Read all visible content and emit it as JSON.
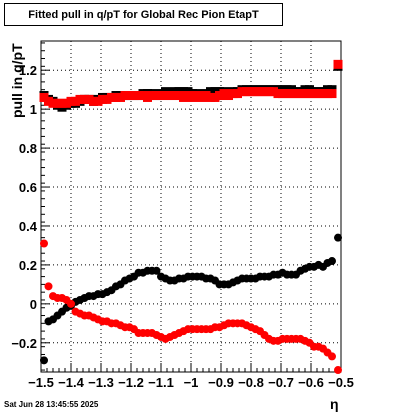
{
  "title": "Fitted pull in q/pT for Global Rec Pion EtapT",
  "footer": "Sat Jun 28 13:45:55 2025",
  "chart_data": {
    "type": "scatter",
    "title": "Fitted pull in q/pT for Global Rec Pion EtapT",
    "xlabel": "η",
    "ylabel": "pull in q/pT",
    "xlim": [
      -1.5,
      -0.5
    ],
    "ylim": [
      -0.35,
      1.35
    ],
    "grid": true,
    "x_ticks": [
      -1.5,
      -1.4,
      -1.3,
      -1.2,
      -1.1,
      -1.0,
      -0.9,
      -0.8,
      -0.7,
      -0.6,
      -0.5
    ],
    "x_tick_labels": [
      "−1.5",
      "−1.4",
      "−1.3",
      "−1.2",
      "−1.1",
      "−1",
      "−0.9",
      "−0.8",
      "−0.7",
      "−0.6",
      "−0.5"
    ],
    "y_ticks": [
      -0.2,
      0,
      0.2,
      0.4,
      0.6,
      0.8,
      1.0,
      1.2
    ],
    "y_tick_labels": [
      "−0.2",
      "0",
      "0.2",
      "0.4",
      "0.6",
      "0.8",
      "1",
      "1.2"
    ],
    "series": [
      {
        "color": "#000000",
        "markers": "circle",
        "points": [
          [
            -1.49,
            -0.29
          ],
          [
            -1.475,
            -0.09
          ],
          [
            -1.46,
            -0.08
          ],
          [
            -1.445,
            -0.06
          ],
          [
            -1.43,
            -0.04
          ],
          [
            -1.415,
            -0.02
          ],
          [
            -1.4,
            -0.01
          ],
          [
            -1.385,
            0.01
          ],
          [
            -1.37,
            0.02
          ],
          [
            -1.355,
            0.03
          ],
          [
            -1.34,
            0.04
          ],
          [
            -1.325,
            0.04
          ],
          [
            -1.31,
            0.05
          ],
          [
            -1.295,
            0.05
          ],
          [
            -1.28,
            0.06
          ],
          [
            -1.265,
            0.07
          ],
          [
            -1.25,
            0.09
          ],
          [
            -1.235,
            0.1
          ],
          [
            -1.22,
            0.12
          ],
          [
            -1.205,
            0.13
          ],
          [
            -1.19,
            0.14
          ],
          [
            -1.175,
            0.16
          ],
          [
            -1.16,
            0.16
          ],
          [
            -1.145,
            0.17
          ],
          [
            -1.13,
            0.17
          ],
          [
            -1.115,
            0.17
          ],
          [
            -1.1,
            0.14
          ],
          [
            -1.085,
            0.13
          ],
          [
            -1.07,
            0.12
          ],
          [
            -1.055,
            0.12
          ],
          [
            -1.04,
            0.13
          ],
          [
            -1.025,
            0.13
          ],
          [
            -1.01,
            0.14
          ],
          [
            -0.995,
            0.14
          ],
          [
            -0.98,
            0.14
          ],
          [
            -0.965,
            0.14
          ],
          [
            -0.95,
            0.13
          ],
          [
            -0.935,
            0.13
          ],
          [
            -0.92,
            0.12
          ],
          [
            -0.905,
            0.1
          ],
          [
            -0.89,
            0.1
          ],
          [
            -0.875,
            0.1
          ],
          [
            -0.86,
            0.11
          ],
          [
            -0.845,
            0.12
          ],
          [
            -0.83,
            0.13
          ],
          [
            -0.815,
            0.13
          ],
          [
            -0.8,
            0.13
          ],
          [
            -0.785,
            0.13
          ],
          [
            -0.77,
            0.14
          ],
          [
            -0.755,
            0.14
          ],
          [
            -0.74,
            0.14
          ],
          [
            -0.725,
            0.15
          ],
          [
            -0.71,
            0.15
          ],
          [
            -0.695,
            0.16
          ],
          [
            -0.68,
            0.15
          ],
          [
            -0.665,
            0.15
          ],
          [
            -0.65,
            0.15
          ],
          [
            -0.635,
            0.17
          ],
          [
            -0.62,
            0.18
          ],
          [
            -0.605,
            0.19
          ],
          [
            -0.59,
            0.19
          ],
          [
            -0.575,
            0.2
          ],
          [
            -0.56,
            0.19
          ],
          [
            -0.545,
            0.21
          ],
          [
            -0.53,
            0.22
          ],
          [
            -0.51,
            0.34
          ]
        ]
      },
      {
        "color": "#ff0000",
        "markers": "circle",
        "points": [
          [
            -1.49,
            0.31
          ],
          [
            -1.475,
            0.09
          ],
          [
            -1.46,
            0.04
          ],
          [
            -1.445,
            0.03
          ],
          [
            -1.43,
            0.03
          ],
          [
            -1.415,
            0.02
          ],
          [
            -1.4,
            0.0
          ],
          [
            -1.385,
            -0.04
          ],
          [
            -1.37,
            -0.05
          ],
          [
            -1.355,
            -0.06
          ],
          [
            -1.34,
            -0.06
          ],
          [
            -1.325,
            -0.07
          ],
          [
            -1.31,
            -0.08
          ],
          [
            -1.295,
            -0.09
          ],
          [
            -1.28,
            -0.09
          ],
          [
            -1.265,
            -0.1
          ],
          [
            -1.25,
            -0.1
          ],
          [
            -1.235,
            -0.11
          ],
          [
            -1.22,
            -0.12
          ],
          [
            -1.205,
            -0.12
          ],
          [
            -1.19,
            -0.13
          ],
          [
            -1.175,
            -0.15
          ],
          [
            -1.16,
            -0.15
          ],
          [
            -1.145,
            -0.15
          ],
          [
            -1.13,
            -0.15
          ],
          [
            -1.115,
            -0.16
          ],
          [
            -1.1,
            -0.17
          ],
          [
            -1.085,
            -0.18
          ],
          [
            -1.07,
            -0.17
          ],
          [
            -1.055,
            -0.16
          ],
          [
            -1.04,
            -0.15
          ],
          [
            -1.025,
            -0.14
          ],
          [
            -1.01,
            -0.13
          ],
          [
            -0.995,
            -0.13
          ],
          [
            -0.98,
            -0.13
          ],
          [
            -0.965,
            -0.13
          ],
          [
            -0.95,
            -0.13
          ],
          [
            -0.935,
            -0.13
          ],
          [
            -0.92,
            -0.12
          ],
          [
            -0.905,
            -0.12
          ],
          [
            -0.89,
            -0.11
          ],
          [
            -0.875,
            -0.1
          ],
          [
            -0.86,
            -0.1
          ],
          [
            -0.845,
            -0.1
          ],
          [
            -0.83,
            -0.1
          ],
          [
            -0.815,
            -0.11
          ],
          [
            -0.8,
            -0.12
          ],
          [
            -0.785,
            -0.13
          ],
          [
            -0.77,
            -0.14
          ],
          [
            -0.755,
            -0.16
          ],
          [
            -0.74,
            -0.18
          ],
          [
            -0.725,
            -0.19
          ],
          [
            -0.71,
            -0.19
          ],
          [
            -0.695,
            -0.18
          ],
          [
            -0.68,
            -0.18
          ],
          [
            -0.665,
            -0.18
          ],
          [
            -0.65,
            -0.18
          ],
          [
            -0.635,
            -0.18
          ],
          [
            -0.62,
            -0.19
          ],
          [
            -0.605,
            -0.2
          ],
          [
            -0.59,
            -0.22
          ],
          [
            -0.575,
            -0.22
          ],
          [
            -0.56,
            -0.23
          ],
          [
            -0.545,
            -0.25
          ],
          [
            -0.53,
            -0.27
          ],
          [
            -0.51,
            -0.34
          ]
        ]
      },
      {
        "color": "#000000",
        "markers": "square",
        "points": [
          [
            -1.49,
            1.07
          ],
          [
            -1.475,
            1.05
          ],
          [
            -1.46,
            1.04
          ],
          [
            -1.445,
            1.02
          ],
          [
            -1.43,
            1.01
          ],
          [
            -1.415,
            1.02
          ],
          [
            -1.4,
            1.03
          ],
          [
            -1.385,
            1.03
          ],
          [
            -1.37,
            1.04
          ],
          [
            -1.355,
            1.05
          ],
          [
            -1.34,
            1.05
          ],
          [
            -1.325,
            1.04
          ],
          [
            -1.31,
            1.05
          ],
          [
            -1.295,
            1.06
          ],
          [
            -1.28,
            1.06
          ],
          [
            -1.265,
            1.06
          ],
          [
            -1.25,
            1.07
          ],
          [
            -1.235,
            1.07
          ],
          [
            -1.22,
            1.07
          ],
          [
            -1.205,
            1.07
          ],
          [
            -1.19,
            1.07
          ],
          [
            -1.175,
            1.07
          ],
          [
            -1.16,
            1.08
          ],
          [
            -1.145,
            1.08
          ],
          [
            -1.13,
            1.08
          ],
          [
            -1.115,
            1.07
          ],
          [
            -1.1,
            1.08
          ],
          [
            -1.085,
            1.09
          ],
          [
            -1.07,
            1.08
          ],
          [
            -1.055,
            1.09
          ],
          [
            -1.04,
            1.09
          ],
          [
            -1.025,
            1.09
          ],
          [
            -1.01,
            1.09
          ],
          [
            -0.995,
            1.08
          ],
          [
            -0.98,
            1.08
          ],
          [
            -0.965,
            1.07
          ],
          [
            -0.95,
            1.08
          ],
          [
            -0.935,
            1.09
          ],
          [
            -0.92,
            1.09
          ],
          [
            -0.905,
            1.09
          ],
          [
            -0.89,
            1.09
          ],
          [
            -0.875,
            1.08
          ],
          [
            -0.86,
            1.09
          ],
          [
            -0.845,
            1.09
          ],
          [
            -0.83,
            1.1
          ],
          [
            -0.815,
            1.1
          ],
          [
            -0.8,
            1.1
          ],
          [
            -0.785,
            1.1
          ],
          [
            -0.77,
            1.1
          ],
          [
            -0.755,
            1.1
          ],
          [
            -0.74,
            1.1
          ],
          [
            -0.725,
            1.1
          ],
          [
            -0.71,
            1.1
          ],
          [
            -0.695,
            1.1
          ],
          [
            -0.68,
            1.1
          ],
          [
            -0.665,
            1.1
          ],
          [
            -0.65,
            1.09
          ],
          [
            -0.635,
            1.09
          ],
          [
            -0.62,
            1.1
          ],
          [
            -0.605,
            1.1
          ],
          [
            -0.59,
            1.09
          ],
          [
            -0.575,
            1.09
          ],
          [
            -0.56,
            1.09
          ],
          [
            -0.545,
            1.1
          ],
          [
            -0.53,
            1.1
          ],
          [
            -0.51,
            1.22
          ]
        ]
      },
      {
        "color": "#ff0000",
        "markers": "square",
        "points": [
          [
            -1.49,
            1.06
          ],
          [
            -1.475,
            1.04
          ],
          [
            -1.46,
            1.03
          ],
          [
            -1.445,
            1.03
          ],
          [
            -1.43,
            1.03
          ],
          [
            -1.415,
            1.03
          ],
          [
            -1.4,
            1.04
          ],
          [
            -1.385,
            1.04
          ],
          [
            -1.37,
            1.05
          ],
          [
            -1.355,
            1.05
          ],
          [
            -1.34,
            1.05
          ],
          [
            -1.325,
            1.04
          ],
          [
            -1.31,
            1.04
          ],
          [
            -1.295,
            1.05
          ],
          [
            -1.28,
            1.05
          ],
          [
            -1.265,
            1.06
          ],
          [
            -1.25,
            1.06
          ],
          [
            -1.235,
            1.06
          ],
          [
            -1.22,
            1.07
          ],
          [
            -1.205,
            1.07
          ],
          [
            -1.19,
            1.07
          ],
          [
            -1.175,
            1.07
          ],
          [
            -1.16,
            1.07
          ],
          [
            -1.145,
            1.06
          ],
          [
            -1.13,
            1.07
          ],
          [
            -1.115,
            1.07
          ],
          [
            -1.1,
            1.07
          ],
          [
            -1.085,
            1.07
          ],
          [
            -1.07,
            1.07
          ],
          [
            -1.055,
            1.07
          ],
          [
            -1.04,
            1.07
          ],
          [
            -1.025,
            1.06
          ],
          [
            -1.01,
            1.07
          ],
          [
            -0.995,
            1.06
          ],
          [
            -0.98,
            1.07
          ],
          [
            -0.965,
            1.06
          ],
          [
            -0.95,
            1.07
          ],
          [
            -0.935,
            1.06
          ],
          [
            -0.92,
            1.06
          ],
          [
            -0.905,
            1.07
          ],
          [
            -0.89,
            1.08
          ],
          [
            -0.875,
            1.07
          ],
          [
            -0.86,
            1.08
          ],
          [
            -0.845,
            1.08
          ],
          [
            -0.83,
            1.09
          ],
          [
            -0.815,
            1.09
          ],
          [
            -0.8,
            1.09
          ],
          [
            -0.785,
            1.09
          ],
          [
            -0.77,
            1.09
          ],
          [
            -0.755,
            1.09
          ],
          [
            -0.74,
            1.09
          ],
          [
            -0.725,
            1.09
          ],
          [
            -0.71,
            1.08
          ],
          [
            -0.695,
            1.08
          ],
          [
            -0.68,
            1.08
          ],
          [
            -0.665,
            1.08
          ],
          [
            -0.65,
            1.08
          ],
          [
            -0.635,
            1.08
          ],
          [
            -0.62,
            1.08
          ],
          [
            -0.605,
            1.08
          ],
          [
            -0.59,
            1.08
          ],
          [
            -0.575,
            1.08
          ],
          [
            -0.56,
            1.08
          ],
          [
            -0.545,
            1.08
          ],
          [
            -0.53,
            1.08
          ],
          [
            -0.51,
            1.23
          ]
        ]
      }
    ]
  }
}
